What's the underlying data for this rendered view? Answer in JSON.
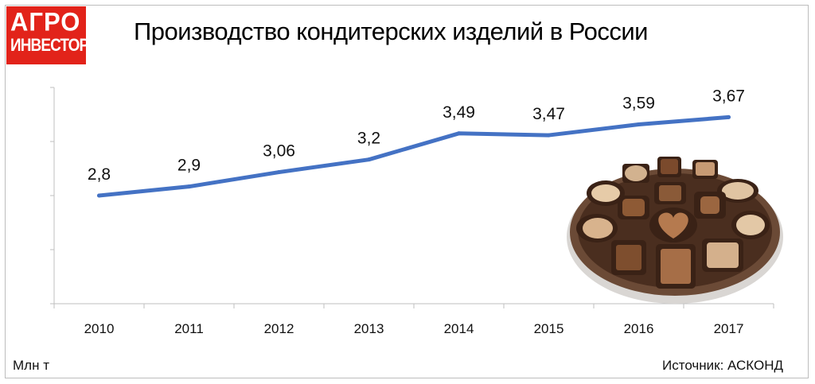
{
  "logo": {
    "line1": "АГРО",
    "line2": "ИНВЕСТОР"
  },
  "unit_label": "Млн т",
  "source": "Источник: АСКОНД",
  "colors": {
    "line": "#4472c4",
    "logo_bg": "#e2231a"
  },
  "chart_data": {
    "type": "line",
    "title": "Производство кондитерских изделий в России",
    "xlabel": "",
    "ylabel": "Млн т",
    "categories": [
      "2010",
      "2011",
      "2012",
      "2013",
      "2014",
      "2015",
      "2016",
      "2017"
    ],
    "values": [
      2.8,
      2.9,
      3.06,
      3.2,
      3.49,
      3.47,
      3.59,
      3.67
    ],
    "labels": [
      "2,8",
      "2,9",
      "3,06",
      "3,2",
      "3,49",
      "3,47",
      "3,59",
      "3,67"
    ],
    "ylim": [
      1.6,
      4.0
    ],
    "grid": false,
    "legend": "none"
  },
  "decor": {
    "image": "chocolate-box-image"
  }
}
